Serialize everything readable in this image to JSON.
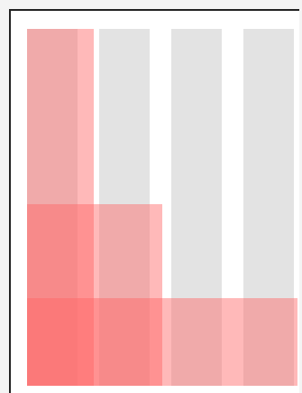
{
  "colors": {
    "page_background": "#f4f4f4",
    "panel_background": "#ffffff",
    "panel_border": "#222222",
    "grey_column": "#e3e3e3",
    "red_overlay": "rgba(255, 100, 100, 0.45)"
  }
}
